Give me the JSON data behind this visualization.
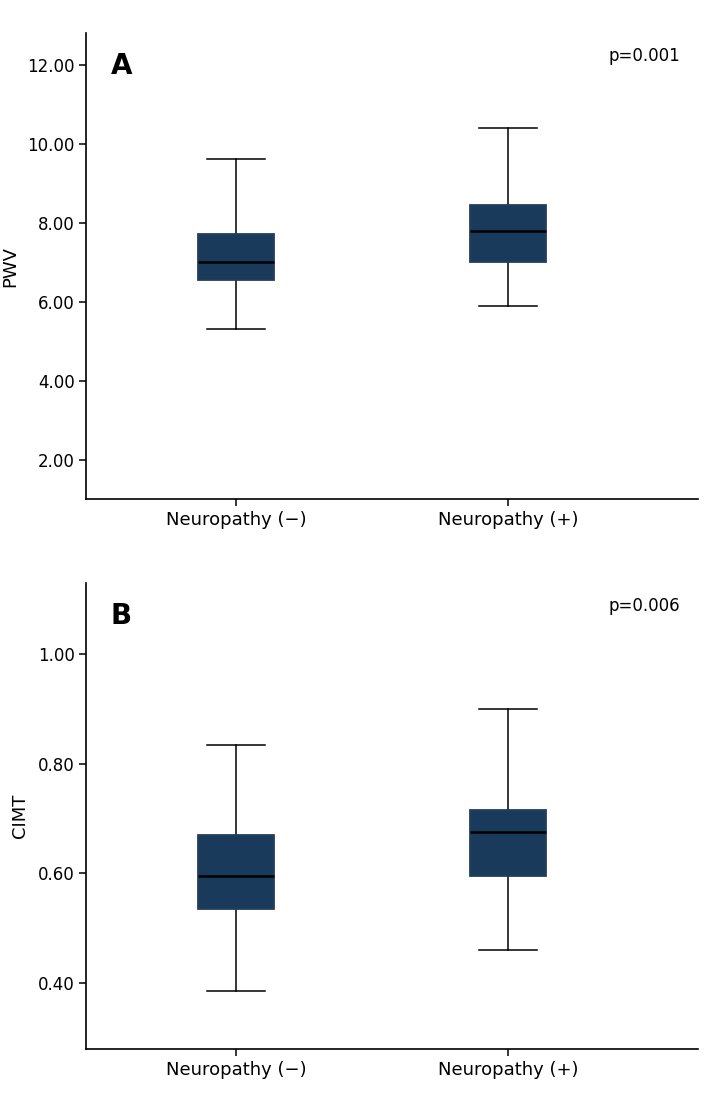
{
  "panel_A": {
    "ylabel": "PWV",
    "pvalue": "p=0.001",
    "label": "A",
    "ylim": [
      1.0,
      12.8
    ],
    "yticks": [
      2.0,
      4.0,
      6.0,
      8.0,
      10.0,
      12.0
    ],
    "ytick_labels": [
      "2.00",
      "4.00",
      "6.00",
      "8.00",
      "10.00",
      "12.00"
    ],
    "groups": [
      "Neuropathy (−)",
      "Neuropathy (+)"
    ],
    "boxes": [
      {
        "whisker_low": 5.3,
        "q1": 6.55,
        "median": 7.0,
        "q3": 7.7,
        "whisker_high": 9.6
      },
      {
        "whisker_low": 5.9,
        "q1": 7.0,
        "median": 7.8,
        "q3": 8.45,
        "whisker_high": 10.4
      }
    ]
  },
  "panel_B": {
    "ylabel": "CIMT",
    "pvalue": "p=0.006",
    "label": "B",
    "ylim": [
      0.28,
      1.13
    ],
    "yticks": [
      0.4,
      0.6,
      0.8,
      1.0
    ],
    "ytick_labels": [
      "0.40",
      "0.60",
      "0.80",
      "1.00"
    ],
    "groups": [
      "Neuropathy (−)",
      "Neuropathy (+)"
    ],
    "boxes": [
      {
        "whisker_low": 0.385,
        "q1": 0.535,
        "median": 0.595,
        "q3": 0.67,
        "whisker_high": 0.835
      },
      {
        "whisker_low": 0.46,
        "q1": 0.595,
        "median": 0.675,
        "q3": 0.715,
        "whisker_high": 0.9
      }
    ]
  },
  "box_color": "#1a3a5c",
  "box_edgecolor": "#243f5e",
  "median_color": "#000000",
  "whisker_color": "#000000",
  "background_color": "#ffffff",
  "box_width": 0.28,
  "positions": [
    1.0,
    2.0
  ],
  "xlim": [
    0.45,
    2.7
  ],
  "xlabel_fontsize": 13,
  "ylabel_fontsize": 13,
  "tick_fontsize": 12,
  "pvalue_fontsize": 12,
  "label_fontsize": 20
}
